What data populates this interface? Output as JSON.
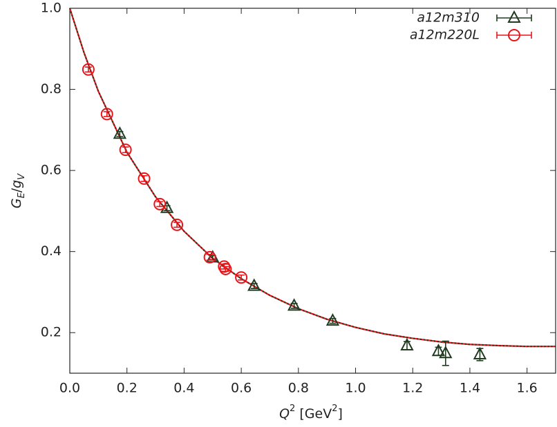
{
  "chart_data": {
    "type": "scatter",
    "xlabel": [
      {
        "text": "Q",
        "pos": "base",
        "italic": true
      },
      {
        "text": "2",
        "pos": "sup",
        "italic": false
      },
      {
        "text": " [GeV",
        "pos": "base",
        "italic": false
      },
      {
        "text": "2",
        "pos": "sup",
        "italic": false
      },
      {
        "text": "]",
        "pos": "base",
        "italic": false
      }
    ],
    "ylabel": [
      {
        "text": "G",
        "pos": "base",
        "italic": true
      },
      {
        "text": "E",
        "pos": "sub",
        "italic": true
      },
      {
        "text": "/",
        "pos": "base",
        "italic": false
      },
      {
        "text": "g",
        "pos": "base",
        "italic": true
      },
      {
        "text": "V",
        "pos": "sub",
        "italic": true
      }
    ],
    "xlim": [
      0,
      1.7
    ],
    "ylim": [
      0.1,
      1.0
    ],
    "xticks": [
      {
        "value": 0,
        "label": "0.0"
      },
      0.2,
      0.4,
      0.6,
      0.8,
      {
        "value": 1,
        "label": "1.0"
      },
      1.2,
      1.4,
      1.6
    ],
    "yticks": [
      0.2,
      0.4,
      0.6,
      0.8,
      {
        "value": 1,
        "label": "1.0"
      }
    ],
    "legend": "upper right",
    "series": [
      {
        "name": "a12m310",
        "color": "#1f3a1f",
        "marker": "triangle",
        "x": [
          0.175,
          0.34,
          0.5,
          0.645,
          0.785,
          0.92,
          1.18,
          1.29,
          1.315,
          1.435
        ],
        "values": [
          0.69,
          0.507,
          0.385,
          0.315,
          0.266,
          0.229,
          0.168,
          0.154,
          0.149,
          0.146
        ],
        "errors": [
          0.006,
          0.006,
          0.005,
          0.006,
          0.006,
          0.006,
          0.01,
          0.01,
          0.03,
          0.015
        ]
      },
      {
        "name": "a12m220L",
        "color": "#e8141a",
        "marker": "circle",
        "x": [
          0.065,
          0.13,
          0.195,
          0.26,
          0.315,
          0.375,
          0.49,
          0.54,
          0.545,
          0.6
        ],
        "values": [
          0.849,
          0.739,
          0.651,
          0.58,
          0.517,
          0.466,
          0.386,
          0.363,
          0.357,
          0.336
        ],
        "errors": [
          0.006,
          0.006,
          0.007,
          0.007,
          0.006,
          0.006,
          0.007,
          0.006,
          0.006,
          0.006
        ]
      }
    ],
    "fits": [
      {
        "color": "#e8141a",
        "x": [
          0,
          0.05,
          0.1,
          0.2,
          0.3,
          0.4,
          0.5,
          0.6,
          0.7,
          0.8,
          0.9,
          1.0,
          1.1,
          1.2,
          1.3,
          1.4,
          1.5,
          1.6,
          1.7
        ],
        "values": [
          1.0,
          0.89,
          0.795,
          0.645,
          0.535,
          0.45,
          0.383,
          0.333,
          0.292,
          0.259,
          0.233,
          0.213,
          0.197,
          0.186,
          0.177,
          0.171,
          0.168,
          0.166,
          0.166
        ]
      },
      {
        "color": "#1f3a1f",
        "x": [
          0,
          0.05,
          0.1,
          0.2,
          0.3,
          0.4,
          0.5,
          0.6,
          0.7,
          0.8,
          0.9,
          1.0,
          1.1,
          1.2,
          1.3,
          1.4,
          1.5,
          1.6,
          1.7
        ],
        "values": [
          1.0,
          0.89,
          0.795,
          0.645,
          0.535,
          0.45,
          0.383,
          0.333,
          0.292,
          0.259,
          0.233,
          0.213,
          0.197,
          0.186,
          0.177,
          0.171,
          0.168,
          0.166,
          0.166
        ]
      }
    ]
  }
}
